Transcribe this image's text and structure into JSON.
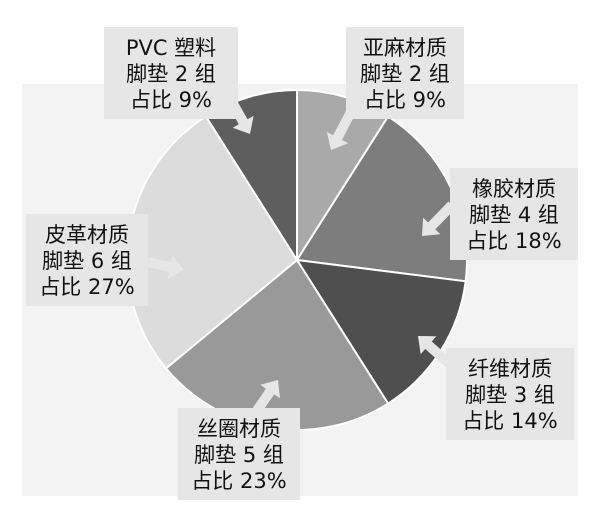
{
  "chart_data": {
    "type": "pie",
    "slices": [
      {
        "name": "亚麻材质",
        "count": "脚垫 2 组",
        "share": "占比 9%",
        "value": 9,
        "color": "#a9a9a9"
      },
      {
        "name": "橡胶材质",
        "count": "脚垫 4 组",
        "share": "占比 18%",
        "value": 18,
        "color": "#7d7d7d"
      },
      {
        "name": "纤维材质",
        "count": "脚垫 3 组",
        "share": "占比 14%",
        "value": 14,
        "color": "#4f4f4f"
      },
      {
        "name": "丝圈材质",
        "count": "脚垫 5 组",
        "share": "占比 23%",
        "value": 23,
        "color": "#999999"
      },
      {
        "name": "皮革材质",
        "count": "脚垫 6 组",
        "share": "占比 27%",
        "value": 27,
        "color": "#dcdcdc"
      },
      {
        "name": "PVC 塑料",
        "count": "脚垫 2 组",
        "share": "占比 9%",
        "value": 9,
        "color": "#5e5e5e"
      }
    ]
  }
}
